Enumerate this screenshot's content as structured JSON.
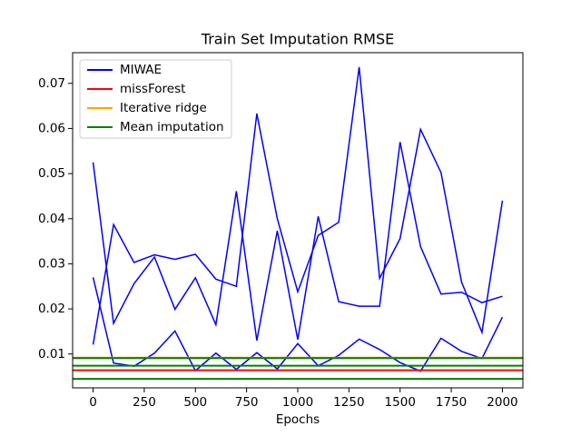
{
  "chart_data": {
    "type": "line",
    "title": "Train Set Imputation RMSE",
    "x_label": "Epochs",
    "x": [
      0,
      100,
      200,
      300,
      400,
      500,
      600,
      700,
      800,
      900,
      1000,
      1100,
      1200,
      1300,
      1400,
      1500,
      1600,
      1700,
      1800,
      1900,
      2000
    ],
    "series": [
      {
        "name": "MIWAE",
        "color": "#0000ff",
        "runs": [
          [
            0.027,
            0.008,
            0.0073,
            0.0102,
            0.0151,
            0.0063,
            0.0102,
            0.0066,
            0.0103,
            0.0067,
            0.0123,
            0.0074,
            0.0097,
            0.0133,
            0.011,
            0.0081,
            0.0062,
            0.0135,
            0.0106,
            0.009,
            0.0182
          ],
          [
            0.0121,
            0.0387,
            0.0303,
            0.032,
            0.031,
            0.0321,
            0.0266,
            0.025,
            0.0633,
            0.04,
            0.0238,
            0.0363,
            0.0392,
            0.0736,
            0.0268,
            0.0356,
            0.0598,
            0.0502,
            0.026,
            0.0148,
            0.044
          ],
          [
            0.0525,
            0.0168,
            0.0256,
            0.0315,
            0.0199,
            0.0269,
            0.0165,
            0.0461,
            0.013,
            0.0373,
            0.0132,
            0.0405,
            0.0216,
            0.0206,
            0.0206,
            0.057,
            0.0338,
            0.0233,
            0.0237,
            0.0214,
            0.0228
          ]
        ]
      },
      {
        "name": "missForest",
        "color": "#ff0000",
        "levels": [
          0.0064
        ]
      },
      {
        "name": "Iterative ridge",
        "color": "#ffa500",
        "levels": [
          0.0092
        ]
      },
      {
        "name": "Mean imputation",
        "color": "#008000",
        "levels": [
          0.0091,
          0.0074,
          0.0045
        ]
      }
    ],
    "xlim": [
      -100,
      2100
    ],
    "xticks": [
      0,
      250,
      500,
      750,
      1000,
      1250,
      1500,
      1750,
      2000
    ],
    "ylim": [
      0.0025,
      0.0768
    ],
    "yticks": [
      0.01,
      0.02,
      0.03,
      0.04,
      0.05,
      0.06,
      0.07
    ],
    "legend": "upper left"
  }
}
